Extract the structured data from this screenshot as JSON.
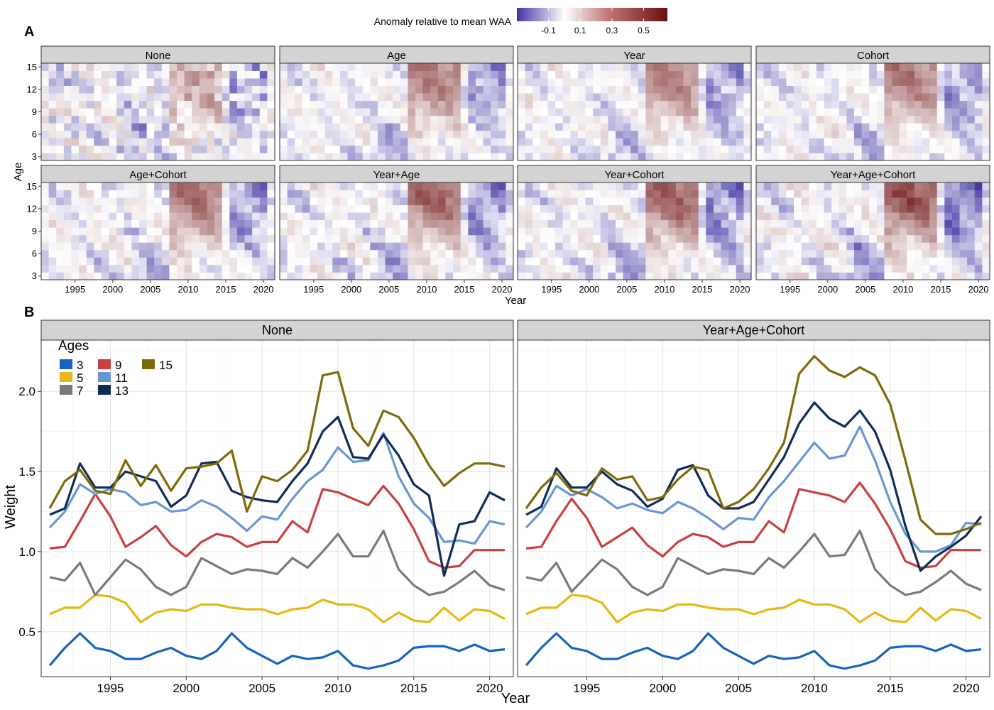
{
  "panel_labels": {
    "a": "A",
    "b": "B"
  },
  "colorbar": {
    "title": "Anomaly relative to mean WAA",
    "ticks": [
      -0.1,
      0.1,
      0.3,
      0.5
    ],
    "tick_labels": [
      "-0.1",
      "0.1",
      "0.3",
      "0.5"
    ],
    "range": [
      -0.3,
      0.65
    ],
    "colors": {
      "low": "#3f36a3",
      "mid": "#ffffff",
      "high": "#6b0d0d"
    }
  },
  "heatmap": {
    "xlabel": "Year",
    "ylabel": "Age",
    "x_ticks": [
      "1995",
      "2000",
      "2005",
      "2010",
      "2015",
      "2020"
    ],
    "y_ticks": [
      "3",
      "6",
      "9",
      "12",
      "15"
    ],
    "years": [
      1991,
      2021
    ],
    "ages": [
      3,
      15
    ],
    "panels": [
      "None",
      "Age",
      "Year",
      "Cohort",
      "Age+Cohort",
      "Year+Age",
      "Year+Cohort",
      "Year+Age+Cohort"
    ]
  },
  "chart_data": {
    "type": "line",
    "xlabel": "Year",
    "ylabel": "Weight",
    "legend_title": "Ages",
    "legend_placement": "top-left",
    "grid": true,
    "xlim": [
      1991,
      2021
    ],
    "ylim": [
      0.22,
      2.32
    ],
    "x_ticks": [
      "1995",
      "2000",
      "2005",
      "2010",
      "2015",
      "2020"
    ],
    "y_ticks": [
      "0.5",
      "1.0",
      "1.5",
      "2.0"
    ],
    "x": [
      1991,
      1992,
      1993,
      1994,
      1995,
      1996,
      1997,
      1998,
      1999,
      2000,
      2001,
      2002,
      2003,
      2004,
      2005,
      2006,
      2007,
      2008,
      2009,
      2010,
      2011,
      2012,
      2013,
      2014,
      2015,
      2016,
      2017,
      2018,
      2019,
      2020,
      2021
    ],
    "panels": [
      {
        "title": "None",
        "series": [
          {
            "name": "3",
            "color": "#1565c0",
            "values": [
              0.29,
              0.4,
              0.49,
              0.4,
              0.38,
              0.33,
              0.33,
              0.37,
              0.4,
              0.35,
              0.33,
              0.38,
              0.49,
              0.4,
              0.35,
              0.3,
              0.35,
              0.33,
              0.34,
              0.38,
              0.29,
              0.27,
              0.29,
              0.32,
              0.4,
              0.41,
              0.41,
              0.38,
              0.42,
              0.38,
              0.39
            ]
          },
          {
            "name": "5",
            "color": "#e6b814",
            "values": [
              0.61,
              0.65,
              0.65,
              0.73,
              0.72,
              0.68,
              0.56,
              0.62,
              0.64,
              0.63,
              0.67,
              0.67,
              0.65,
              0.64,
              0.64,
              0.61,
              0.64,
              0.65,
              0.7,
              0.67,
              0.67,
              0.64,
              0.56,
              0.62,
              0.57,
              0.56,
              0.65,
              0.57,
              0.64,
              0.63,
              0.58
            ]
          },
          {
            "name": "7",
            "color": "#7a7a7a",
            "values": [
              0.84,
              0.82,
              0.93,
              0.73,
              0.84,
              0.95,
              0.89,
              0.78,
              0.73,
              0.78,
              0.96,
              0.91,
              0.86,
              0.89,
              0.88,
              0.86,
              0.96,
              0.9,
              1.0,
              1.11,
              0.97,
              0.97,
              1.13,
              0.89,
              0.79,
              0.73,
              0.75,
              0.81,
              0.88,
              0.79,
              0.76
            ]
          },
          {
            "name": "9",
            "color": "#c94040",
            "values": [
              1.02,
              1.03,
              1.19,
              1.36,
              1.22,
              1.03,
              1.09,
              1.16,
              1.04,
              0.97,
              1.06,
              1.11,
              1.09,
              1.03,
              1.06,
              1.06,
              1.19,
              1.12,
              1.39,
              1.37,
              1.33,
              1.29,
              1.41,
              1.3,
              1.14,
              0.94,
              0.9,
              0.91,
              1.01,
              1.01,
              1.01
            ]
          },
          {
            "name": "11",
            "color": "#6897d6",
            "values": [
              1.15,
              1.25,
              1.42,
              1.36,
              1.39,
              1.37,
              1.29,
              1.31,
              1.25,
              1.26,
              1.32,
              1.28,
              1.21,
              1.13,
              1.22,
              1.2,
              1.33,
              1.44,
              1.51,
              1.65,
              1.56,
              1.57,
              1.74,
              1.47,
              1.3,
              1.21,
              1.06,
              1.07,
              1.05,
              1.19,
              1.17
            ]
          },
          {
            "name": "13",
            "color": "#0f2d57",
            "values": [
              1.23,
              1.27,
              1.55,
              1.4,
              1.4,
              1.5,
              1.47,
              1.44,
              1.28,
              1.35,
              1.55,
              1.56,
              1.38,
              1.34,
              1.32,
              1.31,
              1.44,
              1.55,
              1.75,
              1.84,
              1.59,
              1.58,
              1.73,
              1.6,
              1.42,
              1.35,
              0.85,
              1.17,
              1.19,
              1.37,
              1.32
            ]
          },
          {
            "name": "15",
            "color": "#7f6a0a",
            "values": [
              1.27,
              1.44,
              1.51,
              1.38,
              1.36,
              1.57,
              1.41,
              1.54,
              1.38,
              1.52,
              1.53,
              1.55,
              1.63,
              1.25,
              1.47,
              1.44,
              1.51,
              1.63,
              2.1,
              2.12,
              1.77,
              1.66,
              1.88,
              1.84,
              1.71,
              1.54,
              1.41,
              1.49,
              1.55,
              1.55,
              1.53
            ]
          }
        ]
      },
      {
        "title": "Year+Age+Cohort",
        "series": [
          {
            "name": "3",
            "color": "#1565c0",
            "values": [
              0.29,
              0.4,
              0.49,
              0.4,
              0.38,
              0.33,
              0.33,
              0.37,
              0.4,
              0.35,
              0.33,
              0.38,
              0.49,
              0.4,
              0.35,
              0.3,
              0.35,
              0.33,
              0.34,
              0.38,
              0.29,
              0.27,
              0.29,
              0.32,
              0.4,
              0.41,
              0.41,
              0.38,
              0.42,
              0.38,
              0.39
            ]
          },
          {
            "name": "5",
            "color": "#e6b814",
            "values": [
              0.61,
              0.65,
              0.65,
              0.73,
              0.72,
              0.68,
              0.56,
              0.62,
              0.64,
              0.63,
              0.67,
              0.67,
              0.65,
              0.64,
              0.64,
              0.61,
              0.64,
              0.65,
              0.7,
              0.67,
              0.67,
              0.64,
              0.56,
              0.62,
              0.57,
              0.56,
              0.65,
              0.57,
              0.64,
              0.63,
              0.58
            ]
          },
          {
            "name": "7",
            "color": "#7a7a7a",
            "values": [
              0.84,
              0.82,
              0.93,
              0.75,
              0.85,
              0.95,
              0.89,
              0.78,
              0.73,
              0.78,
              0.96,
              0.91,
              0.86,
              0.89,
              0.88,
              0.86,
              0.96,
              0.9,
              1.0,
              1.11,
              0.97,
              0.98,
              1.13,
              0.89,
              0.79,
              0.73,
              0.75,
              0.81,
              0.88,
              0.8,
              0.76
            ]
          },
          {
            "name": "9",
            "color": "#c94040",
            "values": [
              1.02,
              1.03,
              1.19,
              1.33,
              1.21,
              1.03,
              1.09,
              1.15,
              1.04,
              0.97,
              1.06,
              1.11,
              1.09,
              1.03,
              1.06,
              1.06,
              1.19,
              1.12,
              1.39,
              1.37,
              1.35,
              1.31,
              1.43,
              1.3,
              1.14,
              0.94,
              0.9,
              0.91,
              1.01,
              1.01,
              1.01
            ]
          },
          {
            "name": "11",
            "color": "#6897d6",
            "values": [
              1.15,
              1.25,
              1.41,
              1.35,
              1.39,
              1.34,
              1.27,
              1.3,
              1.26,
              1.24,
              1.31,
              1.27,
              1.21,
              1.14,
              1.21,
              1.2,
              1.34,
              1.44,
              1.56,
              1.68,
              1.58,
              1.6,
              1.78,
              1.57,
              1.31,
              1.11,
              1.0,
              1.0,
              1.04,
              1.18,
              1.17
            ]
          },
          {
            "name": "13",
            "color": "#0f2d57",
            "values": [
              1.23,
              1.28,
              1.52,
              1.4,
              1.4,
              1.5,
              1.42,
              1.38,
              1.28,
              1.33,
              1.51,
              1.54,
              1.35,
              1.27,
              1.27,
              1.31,
              1.45,
              1.59,
              1.8,
              1.93,
              1.83,
              1.78,
              1.88,
              1.75,
              1.51,
              1.16,
              0.88,
              0.97,
              1.03,
              1.1,
              1.22
            ]
          },
          {
            "name": "15",
            "color": "#7f6a0a",
            "values": [
              1.27,
              1.4,
              1.49,
              1.38,
              1.35,
              1.52,
              1.45,
              1.47,
              1.32,
              1.34,
              1.45,
              1.53,
              1.51,
              1.27,
              1.31,
              1.39,
              1.52,
              1.68,
              2.11,
              2.22,
              2.13,
              2.09,
              2.15,
              2.1,
              1.92,
              1.57,
              1.2,
              1.11,
              1.11,
              1.14,
              1.18
            ]
          }
        ]
      }
    ]
  }
}
